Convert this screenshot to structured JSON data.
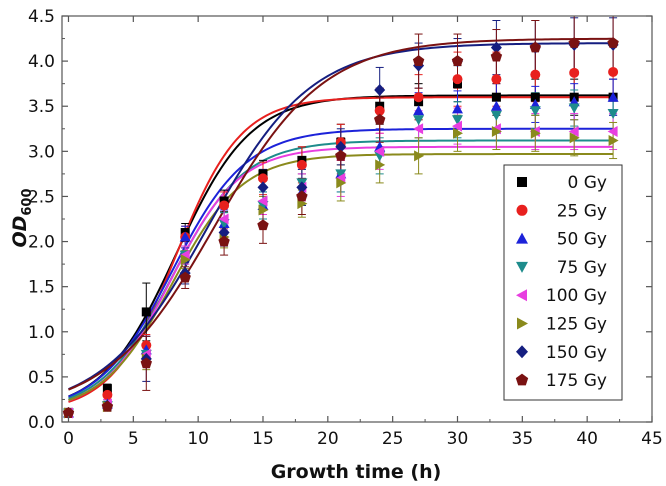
{
  "chart_data": {
    "type": "scatter",
    "title": "",
    "xlabel": "Growth time (h)",
    "ylabel_main": "OD",
    "ylabel_sub": "600",
    "xlim": [
      -0.5,
      45
    ],
    "ylim": [
      0,
      4.5
    ],
    "x_ticks": [
      "0",
      "5",
      "10",
      "15",
      "20",
      "25",
      "30",
      "35",
      "40",
      "45"
    ],
    "y_ticks": [
      "0.0",
      "0.5",
      "1.0",
      "1.5",
      "2.0",
      "2.5",
      "3.0",
      "3.5",
      "4.0",
      "4.5"
    ],
    "legend_position": "right",
    "x": [
      0,
      3,
      6,
      9,
      12,
      15,
      18,
      21,
      24,
      27,
      30,
      33,
      36,
      39,
      42
    ],
    "series": [
      {
        "name": "0 Gy",
        "marker": "square",
        "color": "#000000",
        "values": [
          0.1,
          0.37,
          1.22,
          2.1,
          2.45,
          2.75,
          2.9,
          3.1,
          3.5,
          3.55,
          3.75,
          3.6,
          3.6,
          3.6,
          3.6
        ],
        "errors": [
          0.05,
          0.05,
          0.32,
          0.1,
          0.12,
          0.15,
          0.15,
          0.2,
          0.2,
          0.2,
          0.2,
          0.2,
          0.2,
          0.2,
          0.2
        ],
        "fit": {
          "A": 3.62,
          "k": 0.35,
          "t0": 8.3
        }
      },
      {
        "name": "25 Gy",
        "marker": "circle",
        "color": "#e8201e",
        "values": [
          0.1,
          0.3,
          0.85,
          2.05,
          2.4,
          2.7,
          2.85,
          3.1,
          3.45,
          3.6,
          3.8,
          3.8,
          3.85,
          3.87,
          3.88
        ],
        "errors": [
          0.05,
          0.05,
          0.12,
          0.12,
          0.15,
          0.18,
          0.2,
          0.2,
          0.25,
          0.25,
          0.3,
          0.3,
          0.3,
          0.3,
          0.3
        ],
        "fit": {
          "A": 3.6,
          "k": 0.4,
          "t0": 8.3
        }
      },
      {
        "name": "50 Gy",
        "marker": "triangle-up",
        "color": "#1c22d9",
        "values": [
          0.1,
          0.2,
          0.8,
          2.05,
          2.2,
          2.4,
          2.55,
          2.75,
          3.05,
          3.45,
          3.47,
          3.5,
          3.52,
          3.55,
          3.6
        ],
        "errors": [
          0.05,
          0.05,
          0.15,
          0.12,
          0.15,
          0.15,
          0.15,
          0.2,
          0.2,
          0.2,
          0.2,
          0.25,
          0.2,
          0.2,
          0.2
        ],
        "fit": {
          "A": 3.25,
          "k": 0.35,
          "t0": 8.0
        }
      },
      {
        "name": "75 Gy",
        "marker": "triangle-down",
        "color": "#1e8c8c",
        "values": [
          0.1,
          0.18,
          0.75,
          1.85,
          2.2,
          2.4,
          2.65,
          2.75,
          2.95,
          3.35,
          3.35,
          3.4,
          3.45,
          3.48,
          3.42
        ],
        "errors": [
          0.05,
          0.05,
          0.12,
          0.1,
          0.12,
          0.15,
          0.15,
          0.2,
          0.2,
          0.2,
          0.2,
          0.2,
          0.2,
          0.2,
          0.2
        ],
        "fit": {
          "A": 3.12,
          "k": 0.36,
          "t0": 8.0
        }
      },
      {
        "name": "100 Gy",
        "marker": "triangle-left",
        "color": "#e83ee0",
        "values": [
          0.1,
          0.2,
          0.75,
          1.85,
          2.25,
          2.45,
          2.6,
          2.7,
          3.0,
          3.25,
          3.28,
          3.25,
          3.22,
          3.22,
          3.22
        ],
        "errors": [
          0.05,
          0.05,
          0.12,
          0.1,
          0.12,
          0.15,
          0.15,
          0.2,
          0.2,
          0.2,
          0.2,
          0.2,
          0.2,
          0.2,
          0.2
        ],
        "fit": {
          "A": 3.05,
          "k": 0.38,
          "t0": 7.9
        }
      },
      {
        "name": "125 Gy",
        "marker": "triangle-right",
        "color": "#8a8a1c",
        "values": [
          0.1,
          0.17,
          0.7,
          1.8,
          2.05,
          2.35,
          2.42,
          2.65,
          2.85,
          2.95,
          3.2,
          3.22,
          3.2,
          3.15,
          3.12
        ],
        "errors": [
          0.05,
          0.05,
          0.12,
          0.1,
          0.12,
          0.15,
          0.15,
          0.2,
          0.2,
          0.2,
          0.2,
          0.2,
          0.2,
          0.2,
          0.2
        ],
        "fit": {
          "A": 2.97,
          "k": 0.37,
          "t0": 8.0
        }
      },
      {
        "name": "150 Gy",
        "marker": "diamond",
        "color": "#151e80",
        "values": [
          0.1,
          0.18,
          0.7,
          1.65,
          2.1,
          2.6,
          2.6,
          3.05,
          3.68,
          3.95,
          4.0,
          4.15,
          4.15,
          4.18,
          4.18
        ],
        "errors": [
          0.05,
          0.05,
          0.25,
          0.12,
          0.15,
          0.2,
          0.2,
          0.2,
          0.25,
          0.25,
          0.25,
          0.3,
          0.3,
          0.3,
          0.3
        ],
        "fit": {
          "A": 4.2,
          "k": 0.25,
          "t0": 10.7
        }
      },
      {
        "name": "175 Gy",
        "marker": "pentagon",
        "color": "#7a1212",
        "values": [
          0.1,
          0.17,
          0.65,
          1.6,
          2.0,
          2.18,
          2.5,
          2.95,
          3.35,
          4.0,
          4.0,
          4.05,
          4.15,
          4.2,
          4.2
        ],
        "errors": [
          0.05,
          0.05,
          0.3,
          0.12,
          0.15,
          0.2,
          0.2,
          0.2,
          0.25,
          0.3,
          0.3,
          0.3,
          0.3,
          0.3,
          0.3
        ],
        "fit": {
          "A": 4.25,
          "k": 0.24,
          "t0": 11.3
        }
      }
    ]
  }
}
